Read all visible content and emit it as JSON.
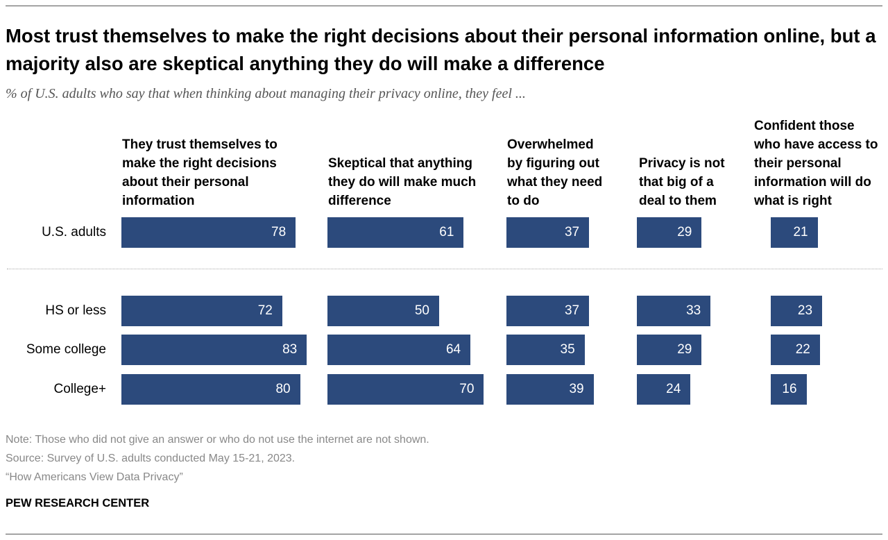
{
  "chart_data": {
    "type": "bar",
    "orientation": "horizontal",
    "title": "Most trust themselves to make the right decisions about their personal information online, but a majority also are skeptical anything they do will make a difference",
    "subtitle": "% of U.S. adults who say that when thinking about managing their privacy online, they feel ...",
    "categories": [
      "U.S. adults",
      "HS or less",
      "Some college",
      "College+"
    ],
    "series": [
      {
        "name": "They trust themselves to make the right decisions about their personal information",
        "color": "#2c4a7c",
        "values": [
          78,
          72,
          83,
          80
        ]
      },
      {
        "name": "Skeptical that anything they do will make much difference",
        "color": "#2c4a7c",
        "values": [
          61,
          50,
          64,
          70
        ]
      },
      {
        "name": "Overwhelmed by figuring out what they need to do",
        "color": "#2c4a7c",
        "values": [
          37,
          37,
          35,
          39
        ]
      },
      {
        "name": "Privacy is not that big of a deal to them",
        "color": "#2c4a7c",
        "values": [
          29,
          33,
          29,
          24
        ]
      },
      {
        "name": "Confident those who have access to their personal information will do what is right",
        "color": "#2c4a7c",
        "values": [
          21,
          23,
          22,
          16
        ]
      }
    ],
    "note": "Note: Those who did not give an answer or who do not use the internet are not shown.",
    "source": "Source: Survey of U.S. adults conducted May 15-21, 2023.",
    "report": "“How Americans View Data Privacy”",
    "credit": "PEW RESEARCH CENTER"
  }
}
